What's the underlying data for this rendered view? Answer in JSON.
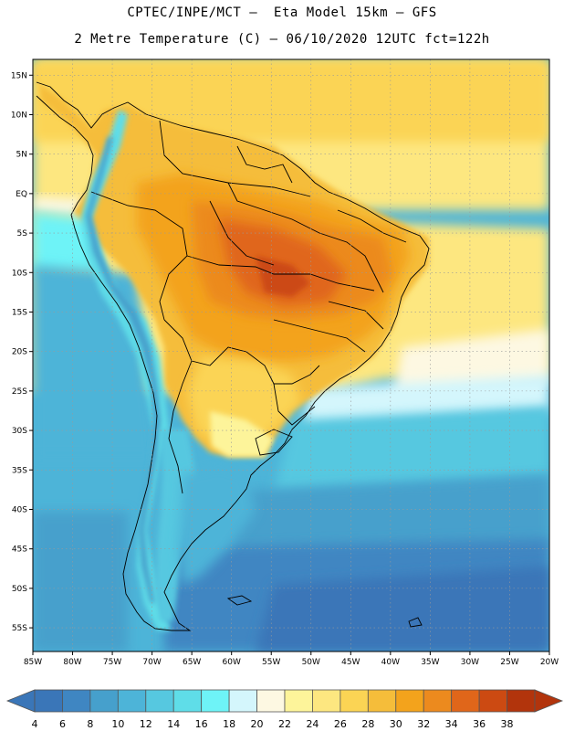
{
  "header": {
    "line1": "CPTEC/INPE/MCT –  Eta Model 15km – GFS",
    "line2": "2 Metre Temperature (C) – 06/10/2020 12UTC fct=122h"
  },
  "map": {
    "lon_range": [
      -85,
      -20
    ],
    "lat_range": [
      -58,
      17
    ],
    "grid": true,
    "lat_ticks": [
      {
        "v": 15,
        "label": "15N"
      },
      {
        "v": 10,
        "label": "10N"
      },
      {
        "v": 5,
        "label": "5N"
      },
      {
        "v": 0,
        "label": "EQ"
      },
      {
        "v": -5,
        "label": "5S"
      },
      {
        "v": -10,
        "label": "10S"
      },
      {
        "v": -15,
        "label": "15S"
      },
      {
        "v": -20,
        "label": "20S"
      },
      {
        "v": -25,
        "label": "25S"
      },
      {
        "v": -30,
        "label": "30S"
      },
      {
        "v": -35,
        "label": "35S"
      },
      {
        "v": -40,
        "label": "40S"
      },
      {
        "v": -45,
        "label": "45S"
      },
      {
        "v": -50,
        "label": "50S"
      },
      {
        "v": -55,
        "label": "55S"
      }
    ],
    "lon_ticks": [
      {
        "v": -85,
        "label": "85W"
      },
      {
        "v": -80,
        "label": "80W"
      },
      {
        "v": -75,
        "label": "75W"
      },
      {
        "v": -70,
        "label": "70W"
      },
      {
        "v": -65,
        "label": "65W"
      },
      {
        "v": -60,
        "label": "60W"
      },
      {
        "v": -55,
        "label": "55W"
      },
      {
        "v": -50,
        "label": "50W"
      },
      {
        "v": -45,
        "label": "45W"
      },
      {
        "v": -40,
        "label": "40W"
      },
      {
        "v": -35,
        "label": "35W"
      },
      {
        "v": -30,
        "label": "30W"
      },
      {
        "v": -25,
        "label": "25W"
      },
      {
        "v": -20,
        "label": "20W"
      }
    ]
  },
  "colorbar": {
    "labels": [
      "4",
      "6",
      "8",
      "10",
      "12",
      "14",
      "16",
      "18",
      "20",
      "22",
      "24",
      "26",
      "28",
      "30",
      "32",
      "34",
      "36",
      "38"
    ],
    "colors": [
      "#3a76b8",
      "#3f86c2",
      "#46a0cc",
      "#4db4d8",
      "#56c8e0",
      "#5fdde8",
      "#6ef3f7",
      "#d4f6fc",
      "#fdf8e2",
      "#fdf49a",
      "#fde780",
      "#fbd454",
      "#f5bd3a",
      "#f3a31c",
      "#ec8a1e",
      "#e0661a",
      "#cc4a12",
      "#b2340c"
    ]
  }
}
